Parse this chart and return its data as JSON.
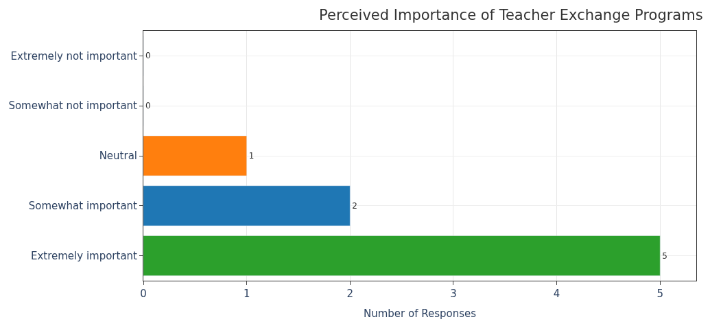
{
  "chart_data": {
    "type": "bar",
    "orientation": "horizontal",
    "title": "Perceived Importance of Teacher Exchange Programs",
    "xlabel": "Number of Responses",
    "categories": [
      "Extremely not important",
      "Somewhat not important",
      "Neutral",
      "Somewhat important",
      "Extremely important"
    ],
    "values": [
      0,
      0,
      1,
      2,
      5
    ],
    "colors": [
      "#d62728",
      "#9467bd",
      "#ff7f0e",
      "#1f77b4",
      "#2ca02c"
    ],
    "xlim": [
      0,
      5.35
    ],
    "xticks": [
      0,
      1,
      2,
      3,
      4,
      5
    ],
    "grid": true,
    "data_labels": true
  }
}
